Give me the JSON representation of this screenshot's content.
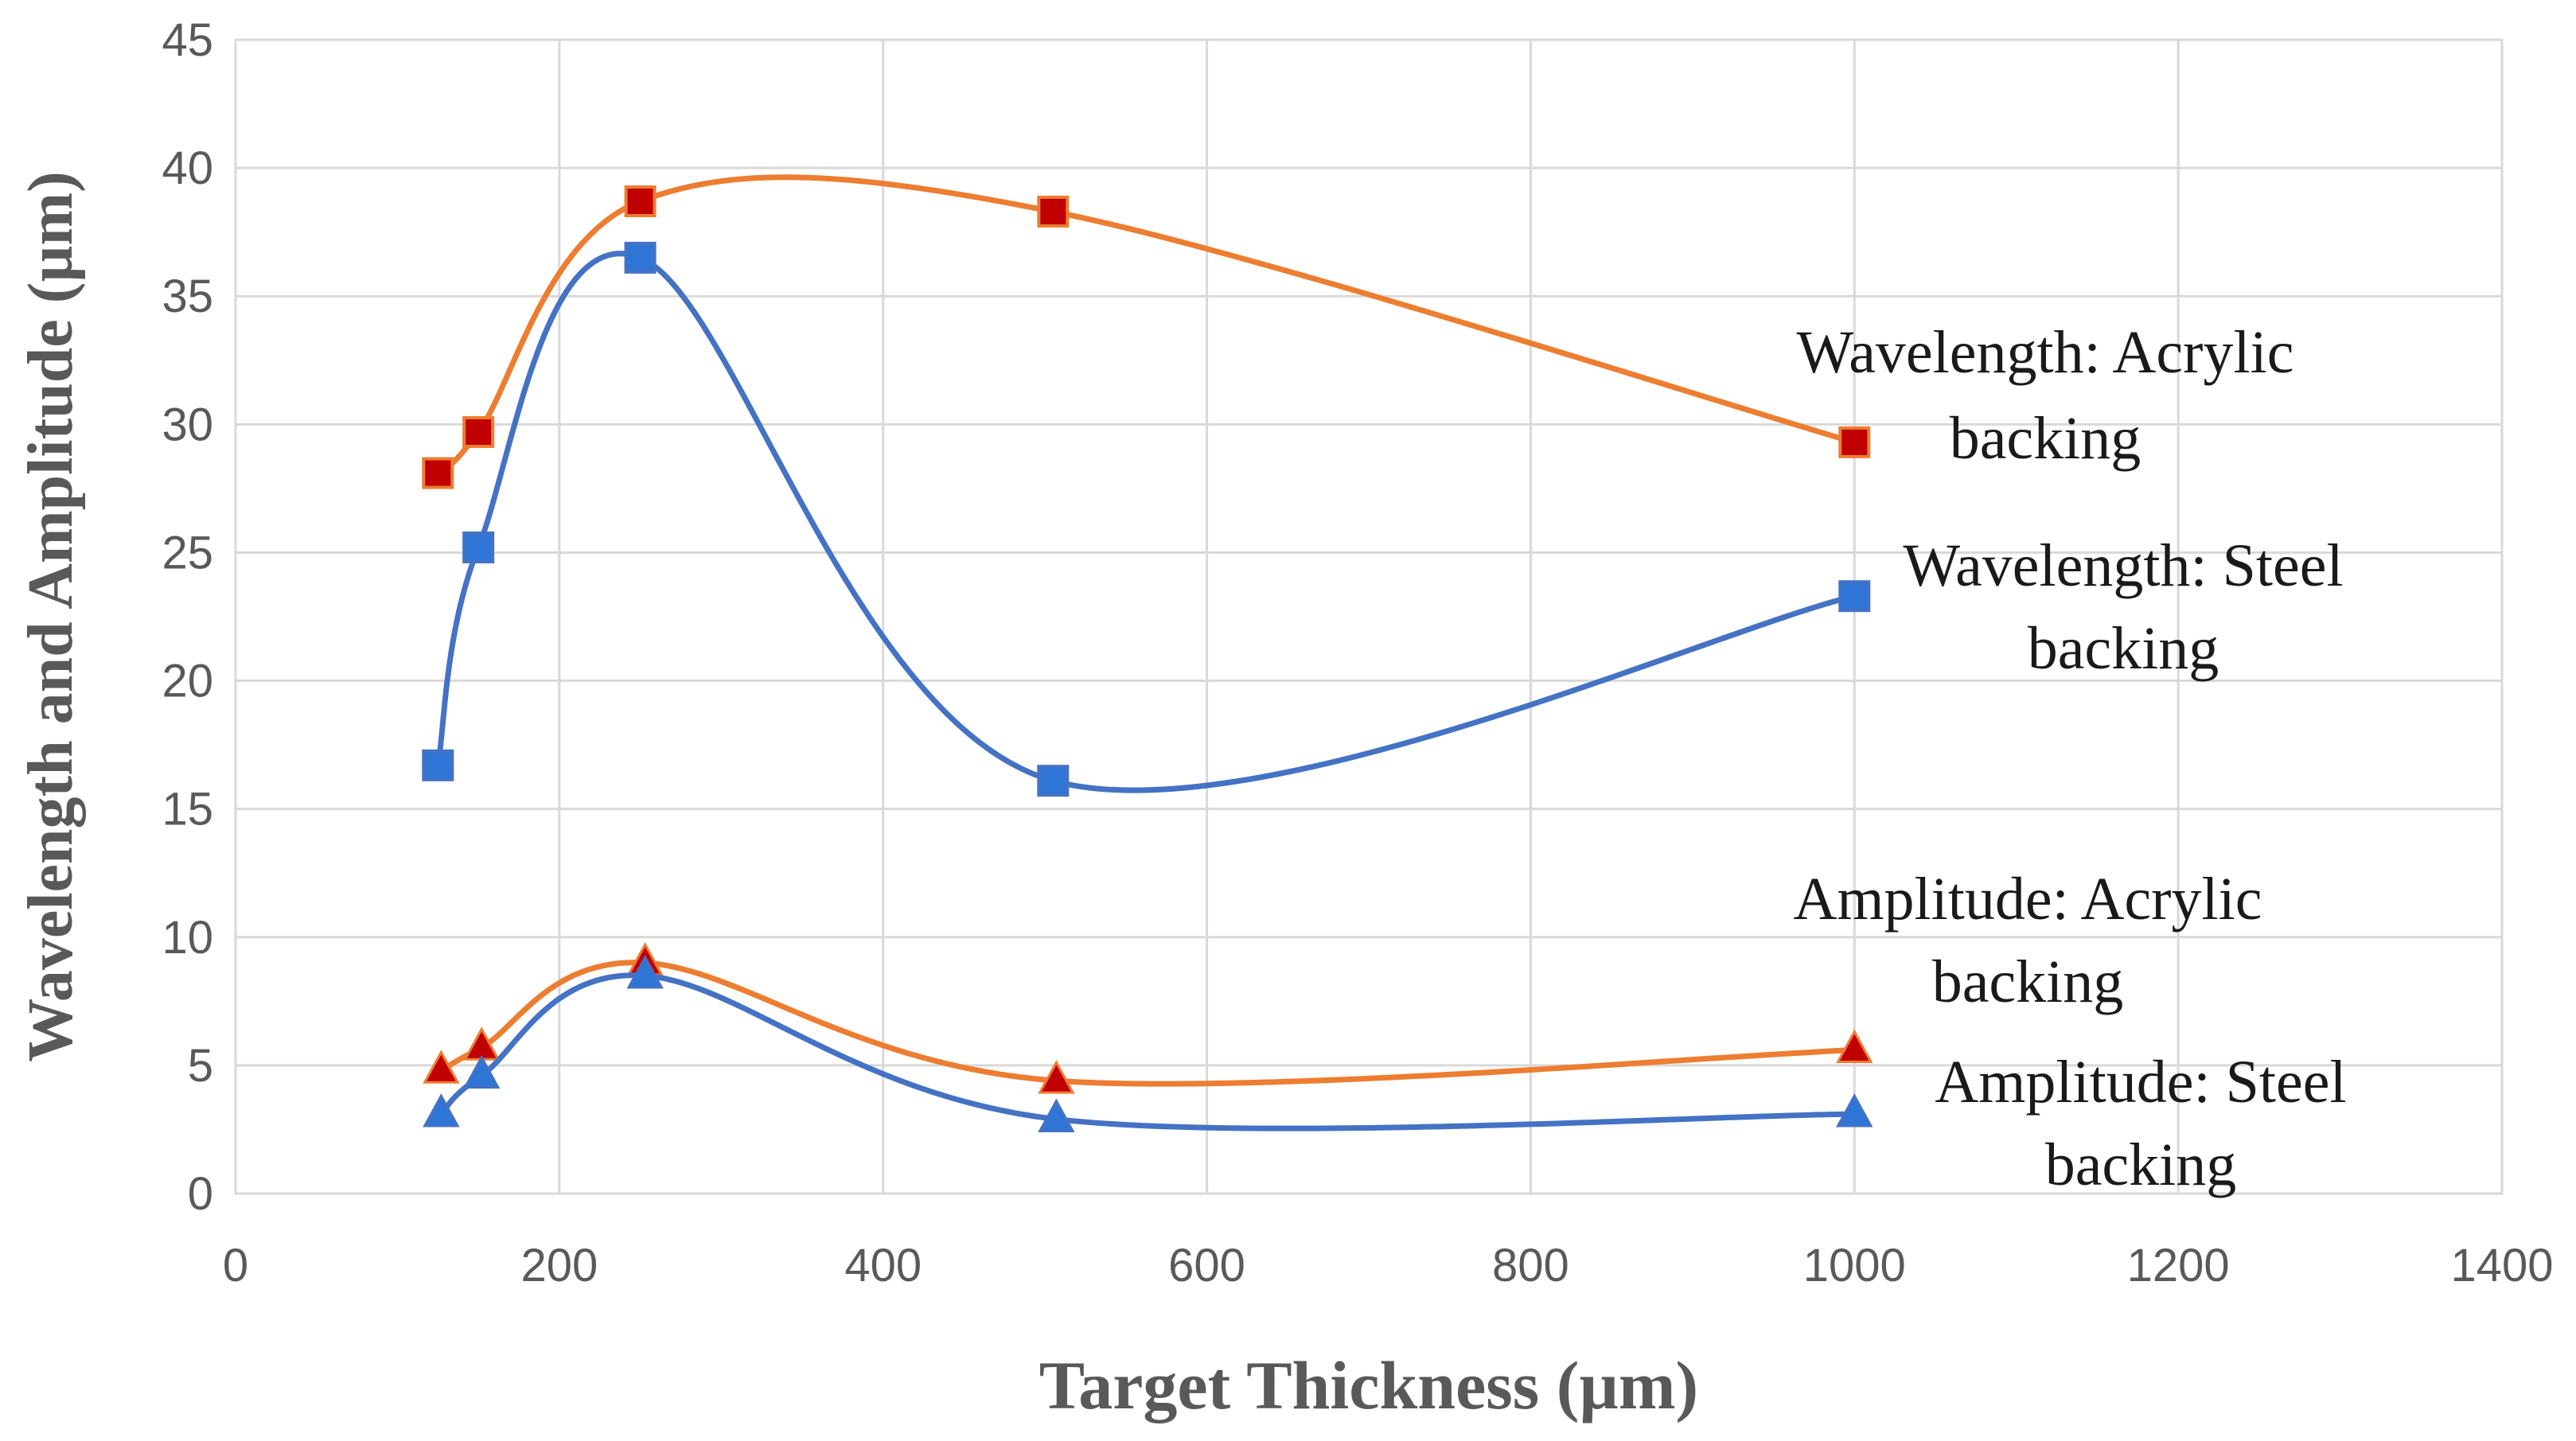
{
  "chart_data": {
    "type": "scatter",
    "title": "",
    "xlabel": "Target Thickness (µm)",
    "ylabel": "Wavelength and Amplitude (µm)",
    "xlim": [
      0,
      1400
    ],
    "ylim": [
      0,
      45
    ],
    "x_ticks": [
      "0",
      "200",
      "400",
      "600",
      "800",
      "1000",
      "1200",
      "1400"
    ],
    "y_ticks": [
      "0",
      "5",
      "10",
      "15",
      "20",
      "25",
      "30",
      "35",
      "40",
      "45"
    ],
    "grid": true,
    "series": [
      {
        "name": "Wavelength: Acrylic backing",
        "label_lines": [
          "Wavelength: Acrylic",
          "backing"
        ],
        "marker": "square",
        "marker_color": "#c00000",
        "line_color": "#ed7d31",
        "x": [
          125,
          150,
          250,
          505,
          1000
        ],
        "y": [
          28.1,
          29.7,
          38.7,
          38.3,
          29.3
        ]
      },
      {
        "name": "Wavelength: Steel backing",
        "label_lines": [
          "Wavelength: Steel",
          "backing"
        ],
        "marker": "square",
        "marker_color": "#2e75d6",
        "line_color": "#4472c4",
        "x": [
          125,
          150,
          250,
          505,
          1000
        ],
        "y": [
          16.7,
          25.2,
          36.5,
          16.1,
          23.3
        ]
      },
      {
        "name": "Amplitude: Acrylic backing",
        "label_lines": [
          "Amplitude: Acrylic",
          "backing"
        ],
        "marker": "triangle",
        "marker_color": "#c00000",
        "line_color": "#ed7d31",
        "x": [
          127,
          152,
          253,
          507,
          1000
        ],
        "y": [
          4.8,
          5.7,
          9.0,
          4.4,
          5.6
        ]
      },
      {
        "name": "Amplitude: Steel backing",
        "label_lines": [
          "Amplitude: Steel",
          "backing"
        ],
        "marker": "triangle",
        "marker_color": "#2e75d6",
        "line_color": "#4472c4",
        "x": [
          127,
          152,
          253,
          507,
          1000
        ],
        "y": [
          3.1,
          4.6,
          8.5,
          2.9,
          3.1
        ]
      }
    ]
  }
}
